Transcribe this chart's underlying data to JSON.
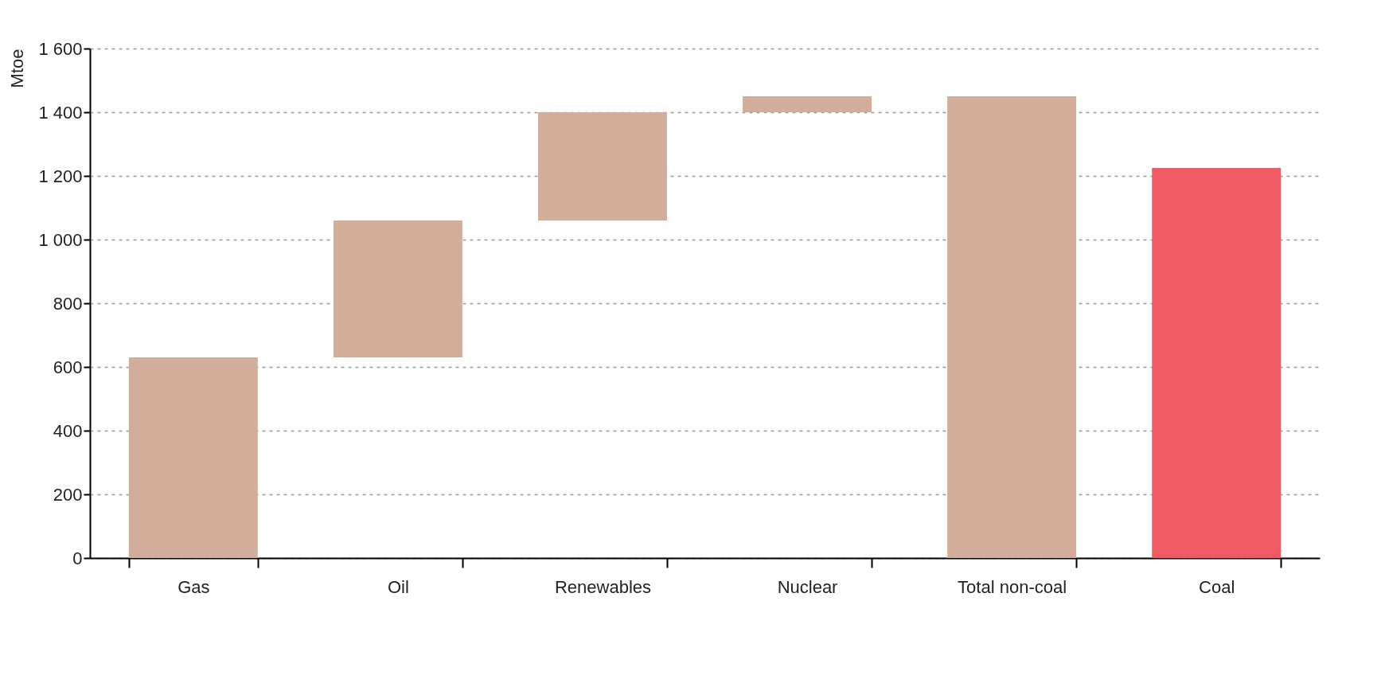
{
  "chart_data": {
    "type": "bar",
    "ylabel": "Mtoe",
    "categories": [
      "Gas",
      "Oil",
      "Renewables",
      "Nuclear",
      "Total non-coal",
      "Coal"
    ],
    "values": [
      630,
      430,
      340,
      50,
      1450,
      1225
    ],
    "base": [
      0,
      630,
      1060,
      1400,
      0,
      0
    ],
    "colors": [
      "#d2ae9a",
      "#d2ae9a",
      "#d2ae9a",
      "#d2ae9a",
      "#d2ae9a",
      "#f05a64"
    ],
    "ylim": [
      0,
      1600
    ],
    "yticks": [
      0,
      200,
      400,
      600,
      800,
      {
        "value": 1000,
        "label": "1 000"
      },
      {
        "value": 1200,
        "label": "1 200"
      },
      {
        "value": 1400,
        "label": "1 400"
      },
      {
        "value": 1600,
        "label": "1 600"
      }
    ],
    "grid": "y",
    "legend": false
  }
}
